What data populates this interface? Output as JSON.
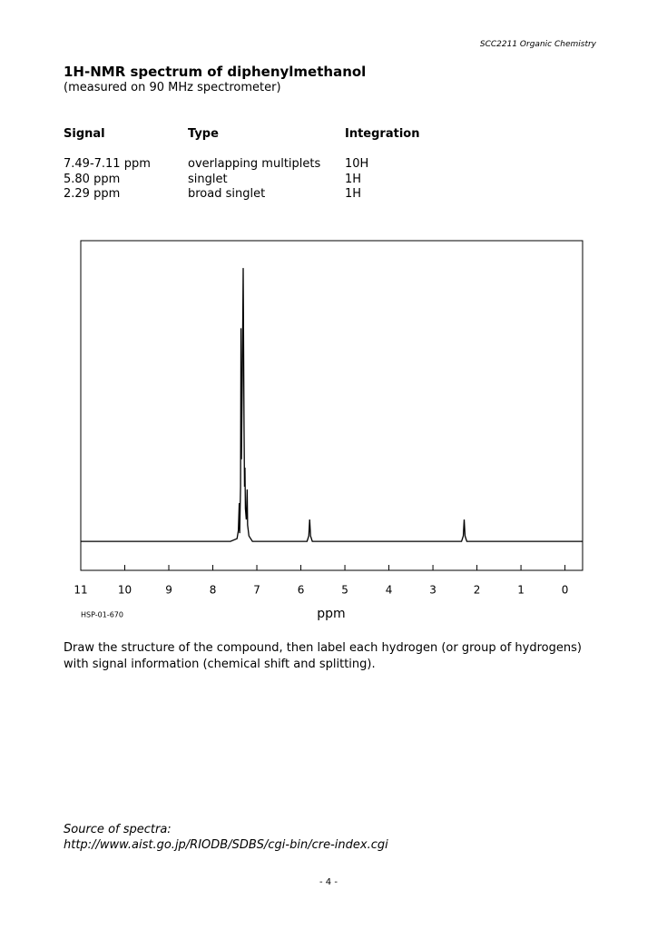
{
  "header": "SCC2211 Organic Chemistry",
  "title": "1H-NMR spectrum of diphenylmethanol",
  "subtitle": "(measured on 90 MHz spectrometer)",
  "table": {
    "columns": [
      "Signal",
      "Type",
      "Integration"
    ],
    "rows": [
      [
        "7.49-7.11 ppm",
        "overlapping multiplets",
        "10H"
      ],
      [
        "5.80 ppm",
        "singlet",
        "1H"
      ],
      [
        "2.29 ppm",
        "broad singlet",
        "1H"
      ]
    ]
  },
  "chart_data": {
    "type": "line",
    "x_label": "ppm",
    "code": "HSP-01-670",
    "xlim": [
      11,
      -0.4
    ],
    "ylim": [
      -10.6,
      110
    ],
    "xticks": [
      11,
      10,
      9,
      8,
      7,
      6,
      5,
      4,
      3,
      2,
      1,
      0
    ],
    "series": [
      {
        "color": "#000000",
        "x": [
          11,
          7.6,
          7.45,
          7.42,
          7.4,
          7.39,
          7.37,
          7.36,
          7.35,
          7.33,
          7.31,
          7.3,
          7.29,
          7.28,
          7.27,
          7.26,
          7.24,
          7.22,
          7.21,
          7.18,
          7.1,
          5.86,
          5.82,
          5.8,
          5.78,
          5.74,
          2.35,
          2.31,
          2.29,
          2.27,
          2.23,
          -0.4
        ],
        "values": [
          0,
          0,
          1,
          4,
          14,
          3,
          20,
          78,
          30,
          60,
          100,
          70,
          40,
          20,
          27,
          12,
          8,
          19,
          6,
          2,
          0,
          0,
          2,
          8,
          2,
          0,
          0,
          2,
          8,
          2,
          0,
          0
        ]
      }
    ]
  },
  "instruction": "Draw the structure of the compound, then label each hydrogen (or group of hydrogens) with signal information (chemical shift and splitting).",
  "source": {
    "label": "Source of spectra:",
    "url": "http://www.aist.go.jp/RIODB/SDBS/cgi-bin/cre-index.cgi"
  },
  "page_number": "- 4 -"
}
